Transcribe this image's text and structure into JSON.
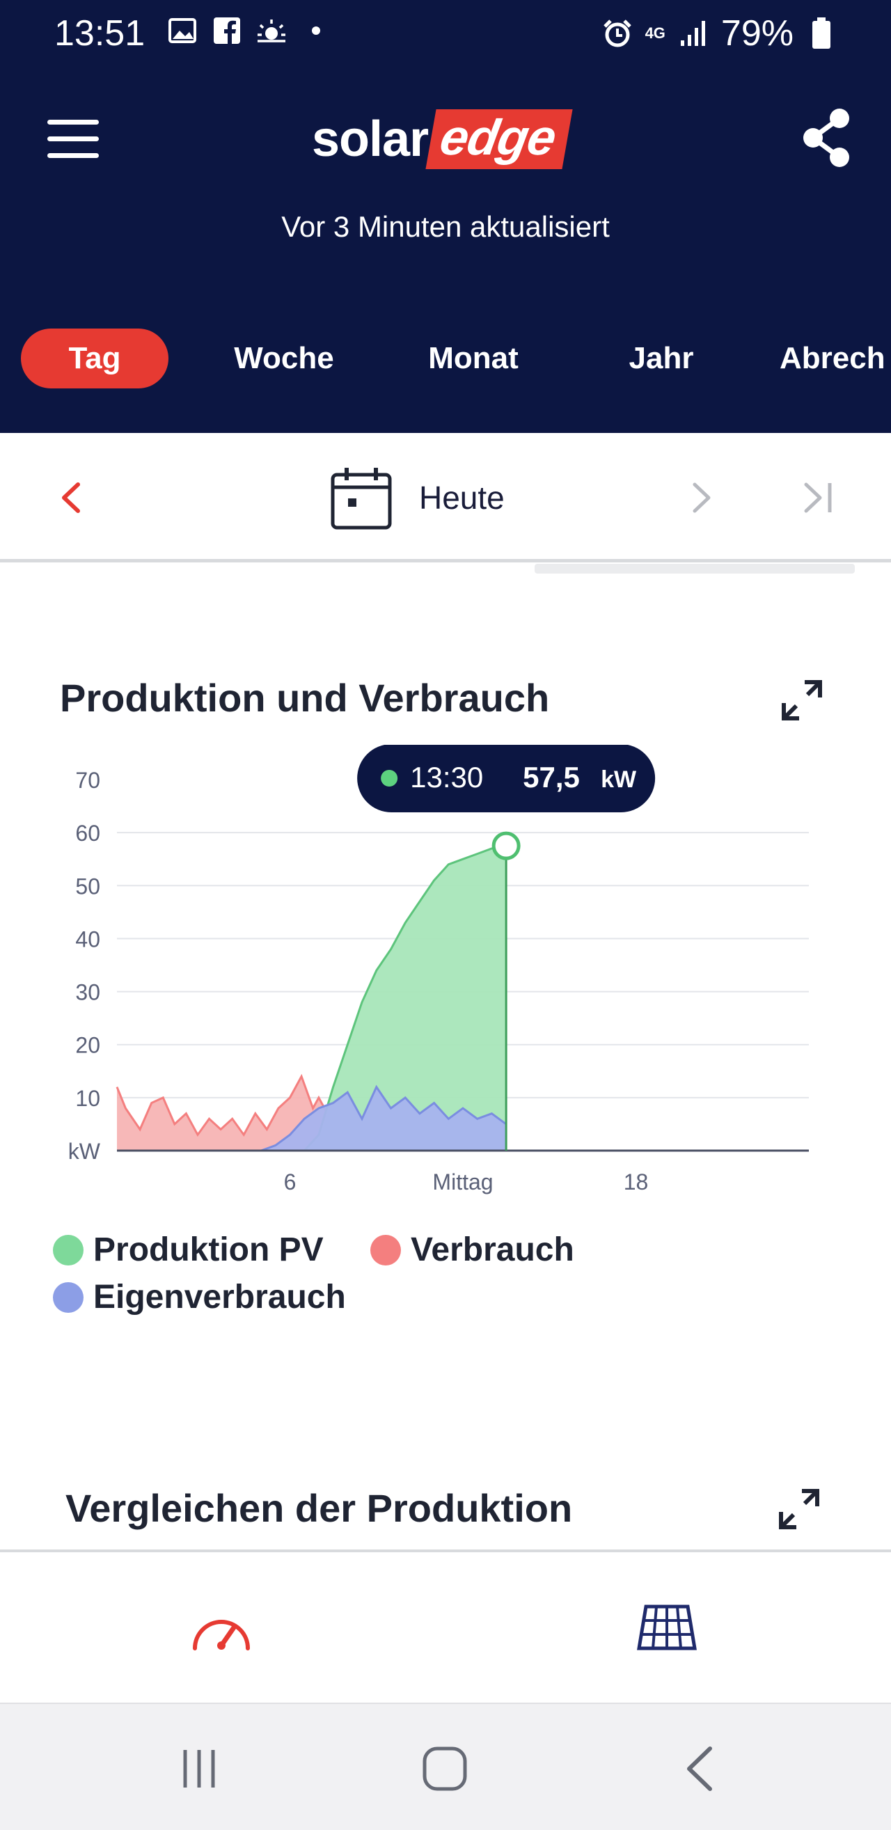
{
  "status_bar": {
    "time": "13:51",
    "battery": "79%",
    "network": "4G",
    "icons": [
      "gallery-icon",
      "facebook-icon",
      "weather-icon",
      "dot-icon",
      "alarm-icon",
      "signal-icon",
      "battery-icon"
    ]
  },
  "header": {
    "logo_part1": "solar",
    "logo_part2": "edge",
    "updated_text": "Vor 3 Minuten aktualisiert",
    "colors": {
      "background": "#0c1642",
      "accent": "#e63a32"
    }
  },
  "tabs": [
    {
      "label": "Tag",
      "active": true
    },
    {
      "label": "Woche",
      "active": false
    },
    {
      "label": "Monat",
      "active": false
    },
    {
      "label": "Jahr",
      "active": false
    },
    {
      "label": "Abrech",
      "active": false
    }
  ],
  "date_nav": {
    "label": "Heute"
  },
  "production_card": {
    "title": "Produktion und Verbrauch",
    "tooltip": {
      "time": "13:30",
      "value": "57,5",
      "unit": "kW"
    }
  },
  "chart_data": {
    "type": "area",
    "ylabel": "kW",
    "ylim": [
      0,
      70
    ],
    "y_ticks": [
      "70",
      "60",
      "50",
      "40",
      "30",
      "20",
      "10",
      "kW"
    ],
    "x_ticks": [
      {
        "label": "6",
        "hour": 6
      },
      {
        "label": "Mittag",
        "hour": 12
      },
      {
        "label": "18",
        "hour": 18
      }
    ],
    "xlim_hours": [
      0,
      24
    ],
    "grid": true,
    "series": [
      {
        "name": "Produktion PV",
        "color": "#7ed99a",
        "x": [
          0,
          6.5,
          7.0,
          7.5,
          8.0,
          8.5,
          9.0,
          9.5,
          10.0,
          10.5,
          11.0,
          11.5,
          12.0,
          12.5,
          13.0,
          13.5
        ],
        "y": [
          0,
          0,
          3,
          12,
          20,
          28,
          34,
          38,
          43,
          47,
          51,
          54,
          55,
          56,
          57,
          57.5
        ]
      },
      {
        "name": "Verbrauch",
        "color": "#f47f7f",
        "x": [
          0,
          0.3,
          0.8,
          1.2,
          1.6,
          2.0,
          2.4,
          2.8,
          3.2,
          3.6,
          4.0,
          4.4,
          4.8,
          5.2,
          5.6,
          6.0,
          6.4,
          6.8,
          7.0,
          7.3
        ],
        "y": [
          12,
          8,
          4,
          9,
          10,
          5,
          7,
          3,
          6,
          4,
          6,
          3,
          7,
          4,
          8,
          10,
          14,
          8,
          10,
          7
        ]
      },
      {
        "name": "Eigenverbrauch",
        "color": "#8c9ee6",
        "x": [
          0,
          5.0,
          5.5,
          6.0,
          6.5,
          7.0,
          7.5,
          8.0,
          8.5,
          9.0,
          9.5,
          10.0,
          10.5,
          11.0,
          11.5,
          12.0,
          12.5,
          13.0,
          13.5
        ],
        "y": [
          0,
          0,
          1,
          3,
          6,
          8,
          9,
          11,
          6,
          12,
          8,
          10,
          7,
          9,
          6,
          8,
          6,
          7,
          5
        ]
      }
    ]
  },
  "compare_card": {
    "title": "Vergleichen der Produktion"
  },
  "bottom_nav": {
    "items": [
      {
        "name": "dashboard-icon"
      },
      {
        "name": "layout-icon"
      }
    ]
  }
}
